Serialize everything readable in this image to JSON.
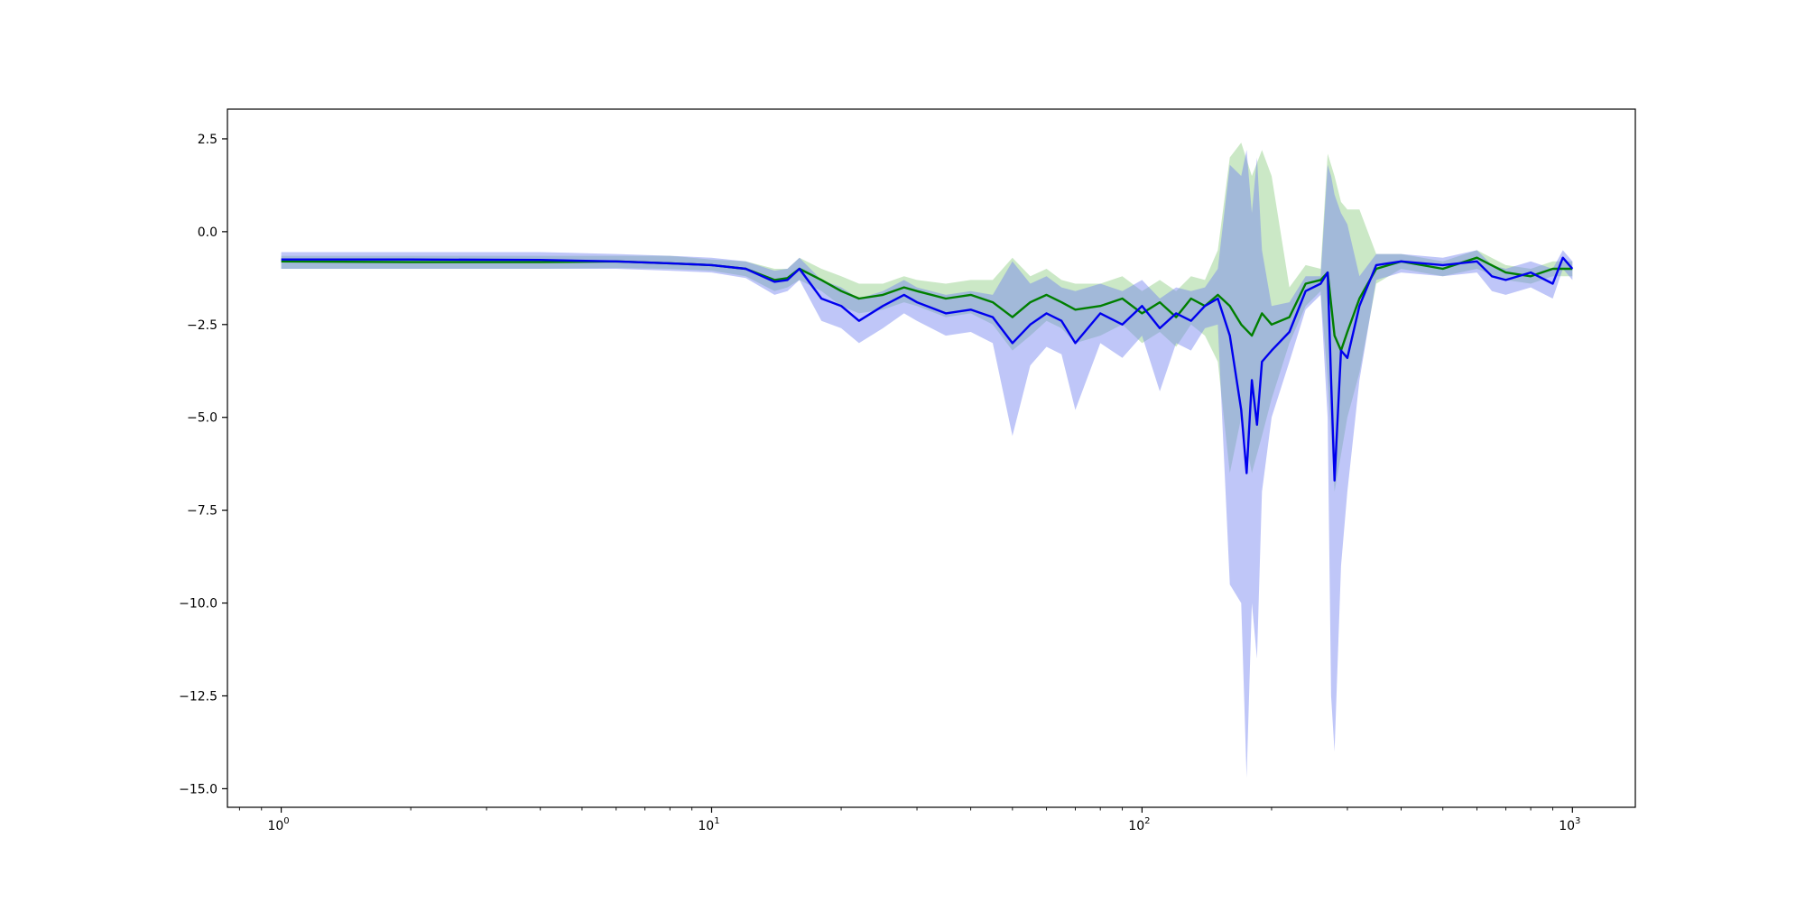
{
  "chart_data": {
    "type": "line",
    "title": "",
    "xlabel": "",
    "ylabel": "",
    "x_scale": "log",
    "xlim": [
      0.75,
      1400
    ],
    "ylim": [
      -15.5,
      3.3
    ],
    "grid": false,
    "x_ticks": [
      {
        "value": 1,
        "base": "10",
        "exp": "0"
      },
      {
        "value": 10,
        "base": "10",
        "exp": "1"
      },
      {
        "value": 100,
        "base": "10",
        "exp": "2"
      },
      {
        "value": 1000,
        "base": "10",
        "exp": "3"
      }
    ],
    "y_ticks": [
      {
        "value": 2.5,
        "label": "2.5"
      },
      {
        "value": 0.0,
        "label": "0.0"
      },
      {
        "value": -2.5,
        "label": "−2.5"
      },
      {
        "value": -5.0,
        "label": "−5.0"
      },
      {
        "value": -7.5,
        "label": "−7.5"
      },
      {
        "value": -10.0,
        "label": "−10.0"
      },
      {
        "value": -12.5,
        "label": "−12.5"
      },
      {
        "value": -15.0,
        "label": "−15.0"
      }
    ],
    "colors": {
      "green_line": "#007f00",
      "green_band": "#a8d8a0",
      "blue_line": "#0000ee",
      "blue_band": "#7080f0"
    },
    "series": [
      {
        "color": "green",
        "x": [
          1,
          2,
          4,
          6,
          8,
          10,
          12,
          14,
          15,
          16,
          18,
          20,
          22,
          25,
          28,
          30,
          35,
          40,
          45,
          50,
          55,
          60,
          65,
          70,
          80,
          90,
          100,
          110,
          120,
          130,
          140,
          150,
          160,
          170,
          180,
          190,
          200,
          220,
          240,
          260,
          270,
          280,
          290,
          300,
          320,
          350,
          400,
          500,
          600,
          700,
          800,
          900,
          1000
        ],
        "y": [
          -0.8,
          -0.82,
          -0.82,
          -0.8,
          -0.85,
          -0.9,
          -1.0,
          -1.3,
          -1.25,
          -1.0,
          -1.3,
          -1.6,
          -1.8,
          -1.7,
          -1.5,
          -1.6,
          -1.8,
          -1.7,
          -1.9,
          -2.3,
          -1.9,
          -1.7,
          -1.9,
          -2.1,
          -2.0,
          -1.8,
          -2.2,
          -1.9,
          -2.3,
          -1.8,
          -2.0,
          -1.7,
          -2.0,
          -2.5,
          -2.8,
          -2.2,
          -2.5,
          -2.3,
          -1.4,
          -1.3,
          -1.1,
          -2.8,
          -3.2,
          -2.7,
          -1.8,
          -1.0,
          -0.8,
          -1.0,
          -0.7,
          -1.1,
          -1.2,
          -1.0,
          -1.0
        ],
        "upper": [
          -0.65,
          -0.65,
          -0.65,
          -0.65,
          -0.65,
          -0.75,
          -0.8,
          -1.0,
          -1.0,
          -0.7,
          -1.0,
          -1.2,
          -1.4,
          -1.4,
          -1.2,
          -1.3,
          -1.4,
          -1.3,
          -1.3,
          -0.7,
          -1.2,
          -1.0,
          -1.3,
          -1.4,
          -1.4,
          -1.2,
          -1.6,
          -1.3,
          -1.6,
          -1.2,
          -1.3,
          -0.5,
          2.0,
          2.4,
          1.5,
          2.2,
          1.5,
          -1.5,
          -0.9,
          -1.0,
          2.1,
          1.5,
          0.8,
          0.6,
          0.6,
          -0.6,
          -0.6,
          -0.8,
          -0.5,
          -0.9,
          -1.0,
          -0.8,
          -0.8
        ],
        "lower": [
          -1.0,
          -1.0,
          -1.0,
          -0.98,
          -1.0,
          -1.05,
          -1.2,
          -1.6,
          -1.5,
          -1.3,
          -1.6,
          -2.0,
          -2.2,
          -2.1,
          -1.9,
          -2.0,
          -2.3,
          -2.2,
          -2.5,
          -3.2,
          -2.8,
          -2.4,
          -2.6,
          -3.0,
          -2.8,
          -2.5,
          -3.0,
          -2.7,
          -3.1,
          -2.5,
          -2.8,
          -3.5,
          -6.5,
          -5.0,
          -6.5,
          -5.5,
          -4.5,
          -3.0,
          -2.0,
          -1.6,
          -4.0,
          -7.0,
          -6.0,
          -5.0,
          -3.8,
          -1.4,
          -1.0,
          -1.2,
          -1.0,
          -1.3,
          -1.4,
          -1.2,
          -1.2
        ]
      },
      {
        "color": "blue",
        "x": [
          1,
          2,
          4,
          6,
          8,
          10,
          12,
          14,
          15,
          16,
          18,
          20,
          22,
          25,
          28,
          30,
          35,
          40,
          45,
          50,
          55,
          60,
          65,
          70,
          80,
          90,
          100,
          110,
          120,
          130,
          140,
          150,
          160,
          170,
          175,
          180,
          185,
          190,
          200,
          220,
          240,
          260,
          270,
          275,
          280,
          290,
          300,
          320,
          350,
          400,
          500,
          600,
          650,
          700,
          800,
          900,
          950,
          1000
        ],
        "y": [
          -0.75,
          -0.75,
          -0.76,
          -0.8,
          -0.85,
          -0.9,
          -1.0,
          -1.35,
          -1.3,
          -1.0,
          -1.8,
          -2.0,
          -2.4,
          -2.0,
          -1.7,
          -1.9,
          -2.2,
          -2.1,
          -2.3,
          -3.0,
          -2.5,
          -2.2,
          -2.4,
          -3.0,
          -2.2,
          -2.5,
          -2.0,
          -2.6,
          -2.2,
          -2.4,
          -2.0,
          -1.8,
          -2.8,
          -4.8,
          -6.5,
          -4.0,
          -5.2,
          -3.5,
          -3.2,
          -2.7,
          -1.6,
          -1.4,
          -1.1,
          -4.0,
          -6.7,
          -3.2,
          -3.4,
          -2.0,
          -0.9,
          -0.8,
          -0.9,
          -0.8,
          -1.2,
          -1.3,
          -1.1,
          -1.4,
          -0.7,
          -1.0
        ],
        "upper": [
          -0.55,
          -0.55,
          -0.55,
          -0.6,
          -0.65,
          -0.7,
          -0.8,
          -1.05,
          -1.0,
          -0.7,
          -1.3,
          -1.5,
          -1.8,
          -1.6,
          -1.3,
          -1.5,
          -1.7,
          -1.6,
          -1.7,
          -0.8,
          -1.4,
          -1.2,
          -1.5,
          -1.6,
          -1.4,
          -1.6,
          -1.3,
          -1.8,
          -1.5,
          -1.6,
          -1.5,
          -1.0,
          1.8,
          1.5,
          2.2,
          0.5,
          2.0,
          -0.5,
          -2.0,
          -1.9,
          -1.2,
          -1.2,
          1.8,
          1.5,
          1.0,
          0.5,
          0.2,
          -1.2,
          -0.6,
          -0.6,
          -0.7,
          -0.5,
          -0.9,
          -1.0,
          -0.8,
          -1.0,
          -0.5,
          -0.8
        ],
        "lower": [
          -1.0,
          -1.0,
          -1.0,
          -1.0,
          -1.05,
          -1.1,
          -1.25,
          -1.7,
          -1.6,
          -1.3,
          -2.4,
          -2.6,
          -3.0,
          -2.6,
          -2.2,
          -2.4,
          -2.8,
          -2.7,
          -3.0,
          -5.5,
          -3.6,
          -3.1,
          -3.3,
          -4.8,
          -3.0,
          -3.4,
          -2.8,
          -4.3,
          -3.0,
          -3.2,
          -2.6,
          -2.5,
          -9.5,
          -10.0,
          -14.7,
          -10.0,
          -11.5,
          -7.0,
          -5.0,
          -3.5,
          -2.1,
          -1.7,
          -5.0,
          -12.5,
          -14.0,
          -9.0,
          -7.0,
          -4.0,
          -1.3,
          -1.1,
          -1.2,
          -1.1,
          -1.6,
          -1.7,
          -1.5,
          -1.8,
          -1.0,
          -1.3
        ]
      }
    ]
  }
}
